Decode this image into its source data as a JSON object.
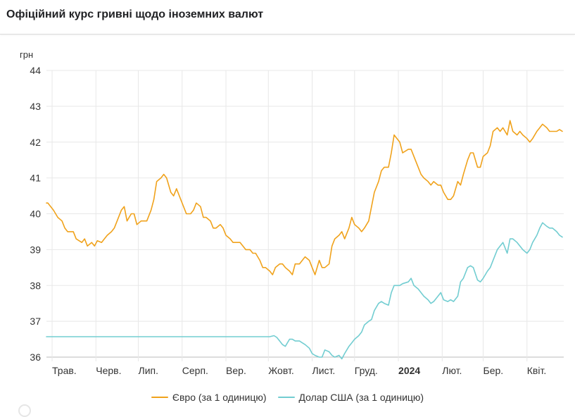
{
  "header": {
    "title": "Офіційний курс гривні щодо іноземних валют"
  },
  "colors": {
    "eur": "#f0a21b",
    "usd": "#72cdd1",
    "grid": "#e8e8e8",
    "axis": "#bbbbbb"
  },
  "chart_data": {
    "type": "line",
    "ylabel": "грн",
    "ylim": [
      36,
      44
    ],
    "yticks": [
      36,
      37,
      38,
      39,
      40,
      41,
      42,
      43,
      44
    ],
    "xlim": [
      "2023-04-27",
      "2024-04-27"
    ],
    "xticks": [
      {
        "label": "Трав.",
        "date": "2023-05-01",
        "bold": false
      },
      {
        "label": "Черв.",
        "date": "2023-06-01",
        "bold": false
      },
      {
        "label": "Лип.",
        "date": "2023-07-01",
        "bold": false
      },
      {
        "label": "Серп.",
        "date": "2023-08-01",
        "bold": false
      },
      {
        "label": "Вер.",
        "date": "2023-09-01",
        "bold": false
      },
      {
        "label": "Жовт.",
        "date": "2023-10-01",
        "bold": false
      },
      {
        "label": "Лист.",
        "date": "2023-11-01",
        "bold": false
      },
      {
        "label": "Груд.",
        "date": "2023-12-01",
        "bold": false
      },
      {
        "label": "2024",
        "date": "2024-01-01",
        "bold": true
      },
      {
        "label": "Лют.",
        "date": "2024-02-01",
        "bold": false
      },
      {
        "label": "Бер.",
        "date": "2024-03-01",
        "bold": false
      },
      {
        "label": "Квіт.",
        "date": "2024-04-01",
        "bold": false
      }
    ],
    "grid": true,
    "legend_position": "bottom",
    "series": [
      {
        "name": "Євро (за 1 одиницю)",
        "color": "#f0a21b",
        "points": [
          [
            "2023-04-27",
            40.3
          ],
          [
            "2023-04-28",
            40.3
          ],
          [
            "2023-05-02",
            40.1
          ],
          [
            "2023-05-05",
            39.9
          ],
          [
            "2023-05-08",
            39.8
          ],
          [
            "2023-05-10",
            39.6
          ],
          [
            "2023-05-12",
            39.5
          ],
          [
            "2023-05-16",
            39.5
          ],
          [
            "2023-05-18",
            39.3
          ],
          [
            "2023-05-22",
            39.2
          ],
          [
            "2023-05-24",
            39.3
          ],
          [
            "2023-05-26",
            39.1
          ],
          [
            "2023-05-29",
            39.2
          ],
          [
            "2023-05-31",
            39.1
          ],
          [
            "2023-06-02",
            39.25
          ],
          [
            "2023-06-05",
            39.2
          ],
          [
            "2023-06-07",
            39.3
          ],
          [
            "2023-06-09",
            39.4
          ],
          [
            "2023-06-12",
            39.5
          ],
          [
            "2023-06-14",
            39.6
          ],
          [
            "2023-06-16",
            39.8
          ],
          [
            "2023-06-19",
            40.1
          ],
          [
            "2023-06-21",
            40.2
          ],
          [
            "2023-06-23",
            39.8
          ],
          [
            "2023-06-26",
            40.0
          ],
          [
            "2023-06-28",
            40.0
          ],
          [
            "2023-06-30",
            39.7
          ],
          [
            "2023-07-03",
            39.8
          ],
          [
            "2023-07-05",
            39.8
          ],
          [
            "2023-07-07",
            39.8
          ],
          [
            "2023-07-10",
            40.1
          ],
          [
            "2023-07-12",
            40.4
          ],
          [
            "2023-07-14",
            40.9
          ],
          [
            "2023-07-17",
            41.0
          ],
          [
            "2023-07-19",
            41.1
          ],
          [
            "2023-07-21",
            41.0
          ],
          [
            "2023-07-24",
            40.6
          ],
          [
            "2023-07-26",
            40.5
          ],
          [
            "2023-07-28",
            40.7
          ],
          [
            "2023-07-31",
            40.4
          ],
          [
            "2023-08-02",
            40.2
          ],
          [
            "2023-08-04",
            40.0
          ],
          [
            "2023-08-07",
            40.0
          ],
          [
            "2023-08-09",
            40.1
          ],
          [
            "2023-08-11",
            40.3
          ],
          [
            "2023-08-14",
            40.2
          ],
          [
            "2023-08-16",
            39.9
          ],
          [
            "2023-08-18",
            39.9
          ],
          [
            "2023-08-21",
            39.8
          ],
          [
            "2023-08-23",
            39.6
          ],
          [
            "2023-08-25",
            39.6
          ],
          [
            "2023-08-28",
            39.7
          ],
          [
            "2023-08-30",
            39.6
          ],
          [
            "2023-09-01",
            39.4
          ],
          [
            "2023-09-04",
            39.3
          ],
          [
            "2023-09-06",
            39.2
          ],
          [
            "2023-09-08",
            39.2
          ],
          [
            "2023-09-11",
            39.2
          ],
          [
            "2023-09-13",
            39.1
          ],
          [
            "2023-09-15",
            39.0
          ],
          [
            "2023-09-18",
            39.0
          ],
          [
            "2023-09-20",
            38.9
          ],
          [
            "2023-09-22",
            38.9
          ],
          [
            "2023-09-25",
            38.7
          ],
          [
            "2023-09-27",
            38.5
          ],
          [
            "2023-09-29",
            38.5
          ],
          [
            "2023-10-02",
            38.4
          ],
          [
            "2023-10-04",
            38.3
          ],
          [
            "2023-10-06",
            38.5
          ],
          [
            "2023-10-09",
            38.6
          ],
          [
            "2023-10-11",
            38.6
          ],
          [
            "2023-10-13",
            38.5
          ],
          [
            "2023-10-16",
            38.4
          ],
          [
            "2023-10-18",
            38.3
          ],
          [
            "2023-10-20",
            38.6
          ],
          [
            "2023-10-23",
            38.6
          ],
          [
            "2023-10-25",
            38.7
          ],
          [
            "2023-10-27",
            38.8
          ],
          [
            "2023-10-30",
            38.7
          ],
          [
            "2023-11-01",
            38.5
          ],
          [
            "2023-11-03",
            38.3
          ],
          [
            "2023-11-06",
            38.7
          ],
          [
            "2023-11-08",
            38.5
          ],
          [
            "2023-11-10",
            38.5
          ],
          [
            "2023-11-13",
            38.6
          ],
          [
            "2023-11-15",
            39.1
          ],
          [
            "2023-11-17",
            39.3
          ],
          [
            "2023-11-20",
            39.4
          ],
          [
            "2023-11-22",
            39.5
          ],
          [
            "2023-11-24",
            39.3
          ],
          [
            "2023-11-27",
            39.6
          ],
          [
            "2023-11-29",
            39.9
          ],
          [
            "2023-12-01",
            39.7
          ],
          [
            "2023-12-04",
            39.6
          ],
          [
            "2023-12-06",
            39.5
          ],
          [
            "2023-12-08",
            39.6
          ],
          [
            "2023-12-11",
            39.8
          ],
          [
            "2023-12-13",
            40.2
          ],
          [
            "2023-12-15",
            40.6
          ],
          [
            "2023-12-18",
            40.9
          ],
          [
            "2023-12-20",
            41.2
          ],
          [
            "2023-12-22",
            41.3
          ],
          [
            "2023-12-25",
            41.3
          ],
          [
            "2023-12-27",
            41.7
          ],
          [
            "2023-12-29",
            42.2
          ],
          [
            "2024-01-02",
            42.0
          ],
          [
            "2024-01-04",
            41.7
          ],
          [
            "2024-01-08",
            41.8
          ],
          [
            "2024-01-10",
            41.8
          ],
          [
            "2024-01-12",
            41.6
          ],
          [
            "2024-01-15",
            41.3
          ],
          [
            "2024-01-17",
            41.1
          ],
          [
            "2024-01-19",
            41.0
          ],
          [
            "2024-01-22",
            40.9
          ],
          [
            "2024-01-24",
            40.8
          ],
          [
            "2024-01-26",
            40.9
          ],
          [
            "2024-01-29",
            40.8
          ],
          [
            "2024-01-31",
            40.8
          ],
          [
            "2024-02-02",
            40.6
          ],
          [
            "2024-02-05",
            40.4
          ],
          [
            "2024-02-07",
            40.4
          ],
          [
            "2024-02-09",
            40.5
          ],
          [
            "2024-02-12",
            40.9
          ],
          [
            "2024-02-14",
            40.8
          ],
          [
            "2024-02-16",
            41.1
          ],
          [
            "2024-02-19",
            41.5
          ],
          [
            "2024-02-21",
            41.7
          ],
          [
            "2024-02-23",
            41.7
          ],
          [
            "2024-02-26",
            41.3
          ],
          [
            "2024-02-28",
            41.3
          ],
          [
            "2024-03-01",
            41.6
          ],
          [
            "2024-03-04",
            41.7
          ],
          [
            "2024-03-06",
            41.9
          ],
          [
            "2024-03-08",
            42.3
          ],
          [
            "2024-03-11",
            42.4
          ],
          [
            "2024-03-13",
            42.3
          ],
          [
            "2024-03-15",
            42.4
          ],
          [
            "2024-03-18",
            42.2
          ],
          [
            "2024-03-20",
            42.6
          ],
          [
            "2024-03-22",
            42.3
          ],
          [
            "2024-03-25",
            42.2
          ],
          [
            "2024-03-27",
            42.3
          ],
          [
            "2024-03-29",
            42.2
          ],
          [
            "2024-04-01",
            42.1
          ],
          [
            "2024-04-03",
            42.0
          ],
          [
            "2024-04-05",
            42.1
          ],
          [
            "2024-04-08",
            42.3
          ],
          [
            "2024-04-10",
            42.4
          ],
          [
            "2024-04-12",
            42.5
          ],
          [
            "2024-04-15",
            42.4
          ],
          [
            "2024-04-17",
            42.3
          ],
          [
            "2024-04-19",
            42.3
          ],
          [
            "2024-04-22",
            42.3
          ],
          [
            "2024-04-24",
            42.35
          ],
          [
            "2024-04-26",
            42.3
          ]
        ]
      },
      {
        "name": "Долар США (за 1 одиницю)",
        "color": "#72cdd1",
        "points": [
          [
            "2023-04-27",
            36.57
          ],
          [
            "2023-05-15",
            36.57
          ],
          [
            "2023-06-15",
            36.57
          ],
          [
            "2023-07-15",
            36.57
          ],
          [
            "2023-08-15",
            36.57
          ],
          [
            "2023-09-15",
            36.57
          ],
          [
            "2023-10-02",
            36.57
          ],
          [
            "2023-10-05",
            36.6
          ],
          [
            "2023-10-07",
            36.55
          ],
          [
            "2023-10-09",
            36.45
          ],
          [
            "2023-10-11",
            36.35
          ],
          [
            "2023-10-13",
            36.3
          ],
          [
            "2023-10-16",
            36.5
          ],
          [
            "2023-10-18",
            36.5
          ],
          [
            "2023-10-20",
            36.45
          ],
          [
            "2023-10-23",
            36.45
          ],
          [
            "2023-10-25",
            36.4
          ],
          [
            "2023-10-27",
            36.35
          ],
          [
            "2023-10-30",
            36.25
          ],
          [
            "2023-11-01",
            36.1
          ],
          [
            "2023-11-03",
            36.05
          ],
          [
            "2023-11-06",
            36.0
          ],
          [
            "2023-11-08",
            36.0
          ],
          [
            "2023-11-10",
            36.2
          ],
          [
            "2023-11-13",
            36.15
          ],
          [
            "2023-11-15",
            36.05
          ],
          [
            "2023-11-17",
            36.0
          ],
          [
            "2023-11-20",
            36.05
          ],
          [
            "2023-11-22",
            35.95
          ],
          [
            "2023-11-24",
            36.1
          ],
          [
            "2023-11-27",
            36.3
          ],
          [
            "2023-11-29",
            36.4
          ],
          [
            "2023-12-01",
            36.5
          ],
          [
            "2023-12-04",
            36.6
          ],
          [
            "2023-12-06",
            36.7
          ],
          [
            "2023-12-08",
            36.9
          ],
          [
            "2023-12-11",
            37.0
          ],
          [
            "2023-12-13",
            37.05
          ],
          [
            "2023-12-15",
            37.3
          ],
          [
            "2023-12-18",
            37.5
          ],
          [
            "2023-12-20",
            37.55
          ],
          [
            "2023-12-22",
            37.5
          ],
          [
            "2023-12-25",
            37.45
          ],
          [
            "2023-12-27",
            37.8
          ],
          [
            "2023-12-29",
            38.0
          ],
          [
            "2024-01-02",
            38.0
          ],
          [
            "2024-01-04",
            38.05
          ],
          [
            "2024-01-08",
            38.1
          ],
          [
            "2024-01-10",
            38.2
          ],
          [
            "2024-01-12",
            38.0
          ],
          [
            "2024-01-15",
            37.9
          ],
          [
            "2024-01-17",
            37.8
          ],
          [
            "2024-01-19",
            37.7
          ],
          [
            "2024-01-22",
            37.6
          ],
          [
            "2024-01-24",
            37.5
          ],
          [
            "2024-01-26",
            37.55
          ],
          [
            "2024-01-29",
            37.7
          ],
          [
            "2024-01-31",
            37.8
          ],
          [
            "2024-02-02",
            37.6
          ],
          [
            "2024-02-05",
            37.55
          ],
          [
            "2024-02-07",
            37.6
          ],
          [
            "2024-02-09",
            37.55
          ],
          [
            "2024-02-12",
            37.7
          ],
          [
            "2024-02-14",
            38.1
          ],
          [
            "2024-02-16",
            38.2
          ],
          [
            "2024-02-19",
            38.5
          ],
          [
            "2024-02-21",
            38.55
          ],
          [
            "2024-02-23",
            38.5
          ],
          [
            "2024-02-26",
            38.15
          ],
          [
            "2024-02-28",
            38.1
          ],
          [
            "2024-03-01",
            38.2
          ],
          [
            "2024-03-04",
            38.4
          ],
          [
            "2024-03-06",
            38.5
          ],
          [
            "2024-03-08",
            38.7
          ],
          [
            "2024-03-11",
            39.0
          ],
          [
            "2024-03-13",
            39.1
          ],
          [
            "2024-03-15",
            39.2
          ],
          [
            "2024-03-18",
            38.9
          ],
          [
            "2024-03-20",
            39.3
          ],
          [
            "2024-03-22",
            39.3
          ],
          [
            "2024-03-25",
            39.2
          ],
          [
            "2024-03-27",
            39.1
          ],
          [
            "2024-03-29",
            39.0
          ],
          [
            "2024-04-01",
            38.9
          ],
          [
            "2024-04-03",
            39.0
          ],
          [
            "2024-04-05",
            39.2
          ],
          [
            "2024-04-08",
            39.4
          ],
          [
            "2024-04-10",
            39.6
          ],
          [
            "2024-04-12",
            39.75
          ],
          [
            "2024-04-15",
            39.65
          ],
          [
            "2024-04-17",
            39.6
          ],
          [
            "2024-04-19",
            39.6
          ],
          [
            "2024-04-22",
            39.5
          ],
          [
            "2024-04-24",
            39.4
          ],
          [
            "2024-04-26",
            39.35
          ]
        ]
      }
    ]
  }
}
